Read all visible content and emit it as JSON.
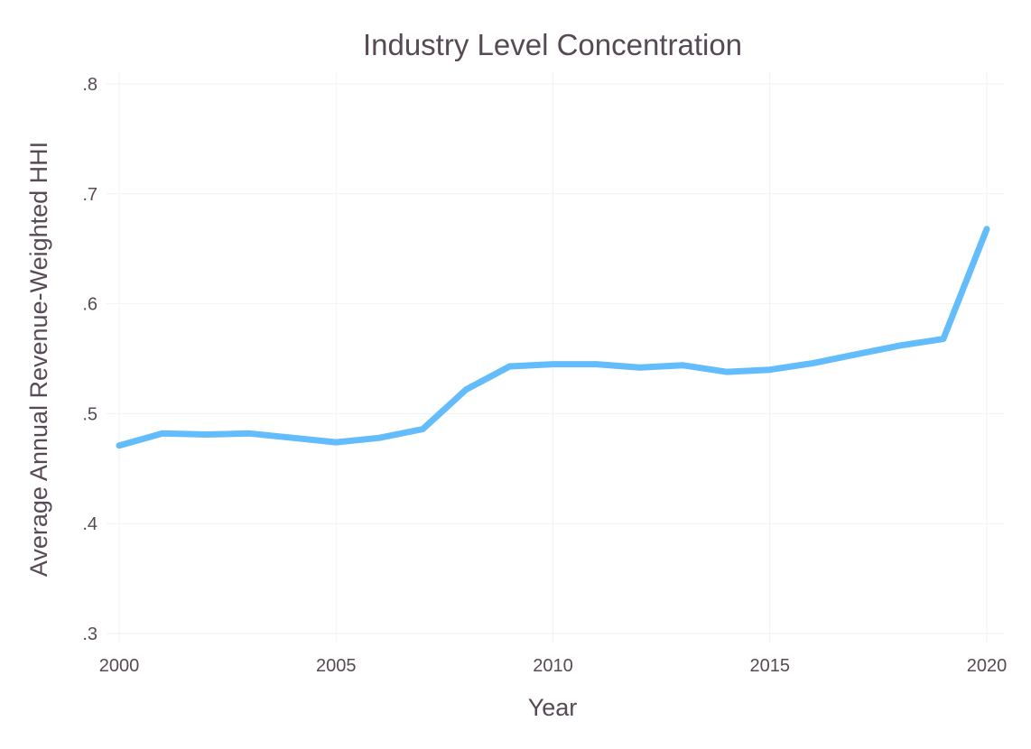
{
  "chart_data": {
    "type": "line",
    "title": "Industry Level Concentration",
    "xlabel": "Year",
    "ylabel": "Average Annual Revenue-Weighted HHI",
    "xlim": [
      2000,
      2020
    ],
    "ylim": [
      0.3,
      0.8
    ],
    "x_ticks": [
      2000,
      2005,
      2010,
      2015,
      2020
    ],
    "x_tick_labels": [
      "2000",
      "2005",
      "2010",
      "2015",
      "2020"
    ],
    "y_ticks": [
      0.3,
      0.4,
      0.5,
      0.6,
      0.7,
      0.8
    ],
    "y_tick_labels": [
      ".3",
      ".4",
      ".5",
      ".6",
      ".7",
      ".8"
    ],
    "grid": true,
    "legend": "none",
    "series": [
      {
        "color": "#63bcfb",
        "x": [
          2000,
          2001,
          2002,
          2003,
          2004,
          2005,
          2006,
          2007,
          2008,
          2009,
          2010,
          2011,
          2012,
          2013,
          2014,
          2015,
          2016,
          2017,
          2018,
          2019,
          2020
        ],
        "y": [
          0.471,
          0.482,
          0.481,
          0.482,
          0.478,
          0.474,
          0.478,
          0.486,
          0.522,
          0.543,
          0.545,
          0.545,
          0.542,
          0.544,
          0.538,
          0.54,
          0.546,
          0.554,
          0.562,
          0.568,
          0.668
        ]
      }
    ]
  }
}
